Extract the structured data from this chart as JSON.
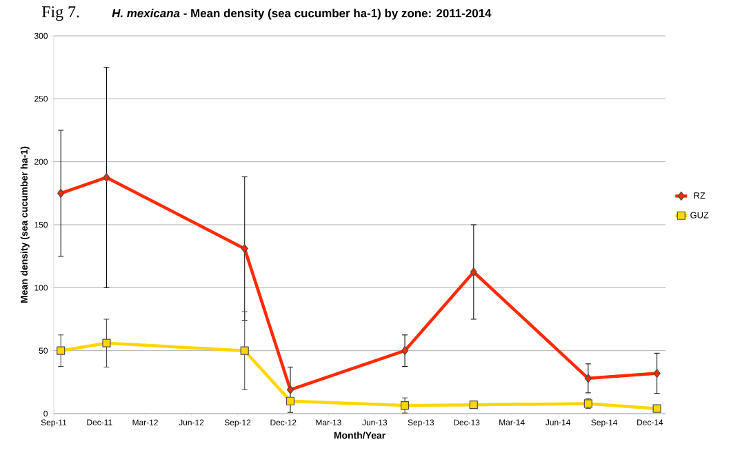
{
  "chart_data": {
    "type": "line",
    "title": "Fig 7.",
    "subtitle": "*H. mexicana* - Mean density (sea cucumber ha-1) by zone: 2011-2014",
    "xlabel": "Month/Year",
    "ylabel": "Mean density (sea cucumber ha-1)",
    "x": [
      "2011-09-15",
      "2011-12-15",
      "2012-09-15",
      "2012-12-15",
      "2013-07-31",
      "2013-12-15",
      "2014-07-31",
      "2014-12-15"
    ],
    "series": [
      {
        "name": "RZ",
        "color": "#ff2a00",
        "marker": "diamond",
        "values": [
          175,
          187.5,
          131,
          19,
          50,
          112.5,
          28,
          32
        ],
        "errors": [
          50,
          87.5,
          57,
          18,
          12.5,
          37.5,
          11.5,
          16
        ]
      },
      {
        "name": "GUZ",
        "color": "#ffd700",
        "marker": "square",
        "values": [
          50,
          56,
          50,
          10,
          6.5,
          7,
          8,
          4
        ],
        "errors": [
          12.5,
          19,
          31,
          null,
          6,
          null,
          4,
          null
        ]
      }
    ],
    "xlim": [
      "2011-09-01",
      "2015-01-01"
    ],
    "xticks": [
      {
        "value": "2011-09-01",
        "label": "Sep-11"
      },
      {
        "value": "2011-12-01",
        "label": "Dec-11"
      },
      {
        "value": "2012-03-01",
        "label": "Mar-12"
      },
      {
        "value": "2012-06-01",
        "label": "Jun-12"
      },
      {
        "value": "2012-09-01",
        "label": "Sep-12"
      },
      {
        "value": "2012-12-01",
        "label": "Dec-12"
      },
      {
        "value": "2013-03-01",
        "label": "Mar-13"
      },
      {
        "value": "2013-06-01",
        "label": "Jun-13"
      },
      {
        "value": "2013-09-01",
        "label": "Sep-13"
      },
      {
        "value": "2013-12-01",
        "label": "Dec-13"
      },
      {
        "value": "2014-03-01",
        "label": "Mar-14"
      },
      {
        "value": "2014-06-01",
        "label": "Jun-14"
      },
      {
        "value": "2014-09-01",
        "label": "Sep-14"
      },
      {
        "value": "2014-12-01",
        "label": "Dec-14"
      }
    ],
    "ylim": [
      0,
      300
    ],
    "yticks": [
      0,
      50,
      100,
      150,
      200,
      250,
      300
    ],
    "grid": "y",
    "legend": "right",
    "line_style": "solid"
  }
}
